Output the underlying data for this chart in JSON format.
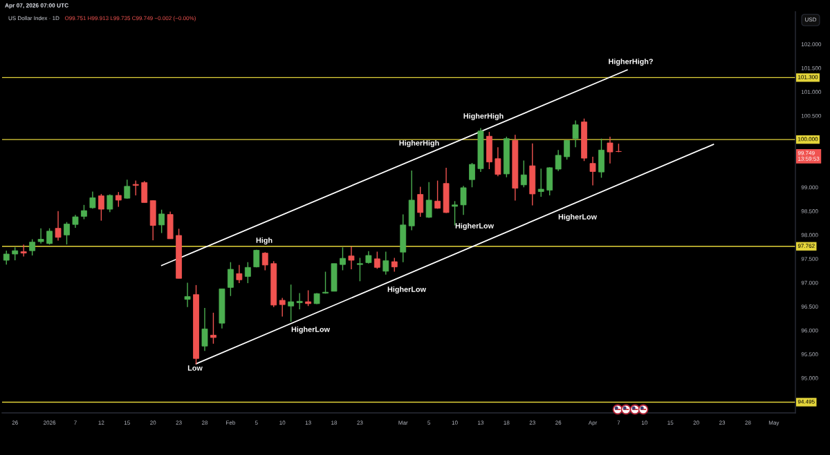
{
  "chart_data": {
    "type": "candlestick",
    "title": "US Dollar Index · 1D",
    "subtitle": "O99.751 H99.913 L99.735 C99.749 −0.002 (−0.00%)",
    "ylabel": "USD",
    "categories": [
      null,
      "26",
      null,
      null,
      null,
      "2026",
      null,
      null,
      "7",
      null,
      null,
      "12",
      null,
      null,
      "15",
      null,
      null,
      "20",
      null,
      null,
      "23",
      null,
      null,
      "28",
      null,
      null,
      "Feb",
      null,
      null,
      "5",
      null,
      null,
      "10",
      null,
      null,
      "13",
      null,
      null,
      "18",
      null,
      null,
      "23",
      null,
      null,
      null,
      null,
      "Mar",
      null,
      null,
      "5",
      null,
      null,
      "10",
      null,
      null,
      "13",
      null,
      null,
      "18",
      null,
      null,
      "23",
      null,
      null,
      "26",
      null,
      null,
      null,
      "Apr",
      null,
      null,
      "7",
      null,
      null,
      "10",
      null,
      null,
      "15",
      null,
      null,
      "20",
      null,
      null,
      "23",
      null,
      null,
      "28",
      null,
      null,
      "May",
      null,
      null
    ],
    "ohlc": [
      [
        97.47,
        97.67,
        97.38,
        97.6
      ],
      [
        97.6,
        97.74,
        97.47,
        97.67
      ],
      [
        97.65,
        97.8,
        97.55,
        97.62
      ],
      [
        97.67,
        97.91,
        97.57,
        97.85
      ],
      [
        97.86,
        98.14,
        97.82,
        97.91
      ],
      [
        97.82,
        98.14,
        97.8,
        98.08
      ],
      [
        98.14,
        98.5,
        97.88,
        97.95
      ],
      [
        98.0,
        98.27,
        97.8,
        98.23
      ],
      [
        98.22,
        98.42,
        98.15,
        98.38
      ],
      [
        98.39,
        98.63,
        98.33,
        98.51
      ],
      [
        98.57,
        98.91,
        98.55,
        98.78
      ],
      [
        98.82,
        98.86,
        98.3,
        98.54
      ],
      [
        98.54,
        98.85,
        98.48,
        98.83
      ],
      [
        98.83,
        98.9,
        98.59,
        98.73
      ],
      [
        98.77,
        99.16,
        98.76,
        99.02
      ],
      [
        99.06,
        99.14,
        98.83,
        99.04
      ],
      [
        99.1,
        99.13,
        98.68,
        98.68
      ],
      [
        98.72,
        98.73,
        97.89,
        98.2
      ],
      [
        98.21,
        98.53,
        98.04,
        98.44
      ],
      [
        98.43,
        98.49,
        97.92,
        97.92
      ],
      [
        97.99,
        98.13,
        97.09,
        97.09
      ],
      [
        96.65,
        97.0,
        96.49,
        96.71
      ],
      [
        96.75,
        96.95,
        95.29,
        95.41
      ],
      [
        95.67,
        96.47,
        95.57,
        96.03
      ],
      [
        95.9,
        96.37,
        95.72,
        95.85
      ],
      [
        96.15,
        96.87,
        96.04,
        96.87
      ],
      [
        96.9,
        97.43,
        96.72,
        97.28
      ],
      [
        97.19,
        97.37,
        96.99,
        97.06
      ],
      [
        97.13,
        97.43,
        96.99,
        97.32
      ],
      [
        97.33,
        97.69,
        97.32,
        97.68
      ],
      [
        97.62,
        97.64,
        97.26,
        97.37
      ],
      [
        97.4,
        97.45,
        96.49,
        96.53
      ],
      [
        96.63,
        96.68,
        96.29,
        96.54
      ],
      [
        96.51,
        96.96,
        96.18,
        96.6
      ],
      [
        96.58,
        96.78,
        96.44,
        96.61
      ],
      [
        96.6,
        96.84,
        96.51,
        96.56
      ],
      [
        96.56,
        96.78,
        96.55,
        96.77
      ],
      [
        96.78,
        97.23,
        96.77,
        96.8
      ],
      [
        96.82,
        97.4,
        96.82,
        97.4
      ],
      [
        97.38,
        97.74,
        97.26,
        97.51
      ],
      [
        97.56,
        97.76,
        97.28,
        97.47
      ],
      [
        97.38,
        97.52,
        97.03,
        97.4
      ],
      [
        97.42,
        97.66,
        97.4,
        97.57
      ],
      [
        97.5,
        97.65,
        97.29,
        97.32
      ],
      [
        97.24,
        97.65,
        97.17,
        97.46
      ],
      [
        97.44,
        97.52,
        97.23,
        97.33
      ],
      [
        97.64,
        98.43,
        97.43,
        98.21
      ],
      [
        98.19,
        99.35,
        98.1,
        98.73
      ],
      [
        98.85,
        99.01,
        98.38,
        98.47
      ],
      [
        98.37,
        99.11,
        98.36,
        98.73
      ],
      [
        98.71,
        99.14,
        98.55,
        98.56
      ],
      [
        99.08,
        99.41,
        98.46,
        98.47
      ],
      [
        98.6,
        98.71,
        98.2,
        98.63
      ],
      [
        98.63,
        99.03,
        98.42,
        98.99
      ],
      [
        99.16,
        99.51,
        99.0,
        99.48
      ],
      [
        99.39,
        100.24,
        99.32,
        100.18
      ],
      [
        100.07,
        100.16,
        99.38,
        99.53
      ],
      [
        99.6,
        99.84,
        99.23,
        99.27
      ],
      [
        99.28,
        100.06,
        99.21,
        100.02
      ],
      [
        99.98,
        100.1,
        98.72,
        98.98
      ],
      [
        99.05,
        99.56,
        99.0,
        99.26
      ],
      [
        99.45,
        99.92,
        98.62,
        98.86
      ],
      [
        98.91,
        99.39,
        98.8,
        98.96
      ],
      [
        98.94,
        99.42,
        98.83,
        99.41
      ],
      [
        99.38,
        99.78,
        99.34,
        99.67
      ],
      [
        99.64,
        99.99,
        99.58,
        99.98
      ],
      [
        100.02,
        100.4,
        99.84,
        100.31
      ],
      [
        100.37,
        100.44,
        99.55,
        99.61
      ],
      [
        99.5,
        99.64,
        99.04,
        99.33
      ],
      [
        99.32,
        100.02,
        99.2,
        99.78
      ],
      [
        99.93,
        100.06,
        99.5,
        99.74
      ],
      [
        99.751,
        99.913,
        99.735,
        99.749
      ],
      null,
      null,
      null,
      null,
      null,
      null,
      null,
      null,
      null,
      null,
      null,
      null,
      null,
      null,
      null,
      null,
      null,
      null,
      null,
      null
    ],
    "colors": [
      "#4caf50",
      "#4caf50",
      "#f05350",
      "#4caf50",
      "#4caf50",
      "#4caf50",
      "#f05350",
      "#4caf50",
      "#4caf50",
      "#4caf50",
      "#4caf50",
      "#f05350",
      "#4caf50",
      "#f05350",
      "#4caf50",
      "#f05350",
      "#f05350",
      "#f05350",
      "#4caf50",
      "#f05350",
      "#f05350",
      "#4caf50",
      "#f05350",
      "#4caf50",
      "#f05350",
      "#4caf50",
      "#4caf50",
      "#f05350",
      "#4caf50",
      "#4caf50",
      "#f05350",
      "#f05350",
      "#f05350",
      "#4caf50",
      "#4caf50",
      "#f05350",
      "#4caf50",
      "#4caf50",
      "#4caf50",
      "#4caf50",
      "#f05350",
      "#4caf50",
      "#4caf50",
      "#f05350",
      "#4caf50",
      "#f05350",
      "#4caf50",
      "#4caf50",
      "#f05350",
      "#4caf50",
      "#f05350",
      "#f05350",
      "#4caf50",
      "#4caf50",
      "#4caf50",
      "#4caf50",
      "#f05350",
      "#f05350",
      "#4caf50",
      "#f05350",
      "#4caf50",
      "#f05350",
      "#4caf50",
      "#4caf50",
      "#4caf50",
      "#4caf50",
      "#4caf50",
      "#f05350",
      "#f05350",
      "#4caf50",
      "#f05350",
      "#f05350",
      null,
      null,
      null,
      null,
      null,
      null,
      null,
      null,
      null,
      null,
      null,
      null,
      null,
      null,
      null,
      null,
      null,
      null,
      null,
      null
    ],
    "series": [
      {
        "type": "line",
        "color": "#ffffff",
        "values": [
          null,
          null,
          null,
          null,
          null,
          null,
          null,
          null,
          null,
          null,
          null,
          null,
          null,
          null,
          null,
          null,
          null,
          null,
          97.36,
          null,
          null,
          null,
          null,
          null,
          null,
          null,
          null,
          null,
          null,
          null,
          null,
          null,
          null,
          null,
          null,
          null,
          null,
          null,
          null,
          null,
          null,
          null,
          null,
          null,
          null,
          null,
          null,
          null,
          null,
          null,
          null,
          null,
          null,
          null,
          null,
          null,
          null,
          null,
          null,
          null,
          null,
          null,
          null,
          null,
          null,
          null,
          null,
          null,
          null,
          null,
          null,
          null,
          101.46,
          null,
          null,
          null,
          null,
          null,
          null,
          null,
          null,
          null,
          null,
          null,
          null,
          null,
          null,
          null,
          null,
          null,
          null,
          null
        ]
      },
      {
        "type": "line",
        "color": "#ffffff",
        "values": [
          null,
          null,
          null,
          null,
          null,
          null,
          null,
          null,
          null,
          null,
          null,
          null,
          null,
          null,
          null,
          null,
          null,
          null,
          null,
          null,
          null,
          null,
          95.3,
          null,
          null,
          null,
          null,
          null,
          null,
          null,
          null,
          null,
          null,
          null,
          null,
          null,
          null,
          null,
          null,
          null,
          null,
          null,
          null,
          null,
          null,
          null,
          null,
          null,
          null,
          null,
          null,
          null,
          null,
          null,
          null,
          null,
          null,
          null,
          null,
          null,
          null,
          null,
          null,
          null,
          null,
          null,
          null,
          null,
          null,
          null,
          null,
          null,
          null,
          null,
          null,
          null,
          null,
          null,
          null,
          null,
          null,
          null,
          99.9,
          null,
          null,
          null,
          null,
          null,
          null,
          null,
          null,
          null
        ]
      }
    ],
    "ylim": [
      94.27,
      102.68
    ],
    "yticks": [
      {
        "value": 95,
        "label": "95.000"
      },
      {
        "value": 95.5,
        "label": "95.500"
      },
      {
        "value": 96,
        "label": "96.000"
      },
      {
        "value": 96.5,
        "label": "96.500"
      },
      {
        "value": 97,
        "label": "97.000"
      },
      {
        "value": 97.5,
        "label": "97.500"
      },
      {
        "value": 98,
        "label": "98.000"
      },
      {
        "value": 98.5,
        "label": "98.500"
      },
      {
        "value": 99,
        "label": "99.000"
      },
      {
        "value": 100,
        "label": null
      },
      {
        "value": 100.5,
        "label": "100.500"
      },
      {
        "value": 101,
        "label": "101.000"
      },
      {
        "value": 101.5,
        "label": "101.500"
      },
      {
        "value": 102,
        "label": "102.000"
      }
    ],
    "ref_lines": [
      {
        "axis": "y",
        "value": 101.3,
        "label": "101.300",
        "color": "#e3d43a"
      },
      {
        "axis": "y",
        "value": 100,
        "label": "100.000",
        "color": "#e3d43a"
      },
      {
        "axis": "y",
        "value": 97.762,
        "label": "97.762",
        "color": "#e3d43a"
      },
      {
        "axis": "y",
        "value": 94.495,
        "label": "94.495",
        "color": "#e3d43a"
      }
    ],
    "annotations": [
      "Apr 07, 2026 07:00 UTC",
      "HigherHigh?",
      "HigherHigh",
      "99.749\n13:59:53",
      "HigherHigh",
      "HigherLow",
      "HigherLow",
      "High",
      "HigherLow",
      "HigherLow",
      "Low"
    ]
  }
}
